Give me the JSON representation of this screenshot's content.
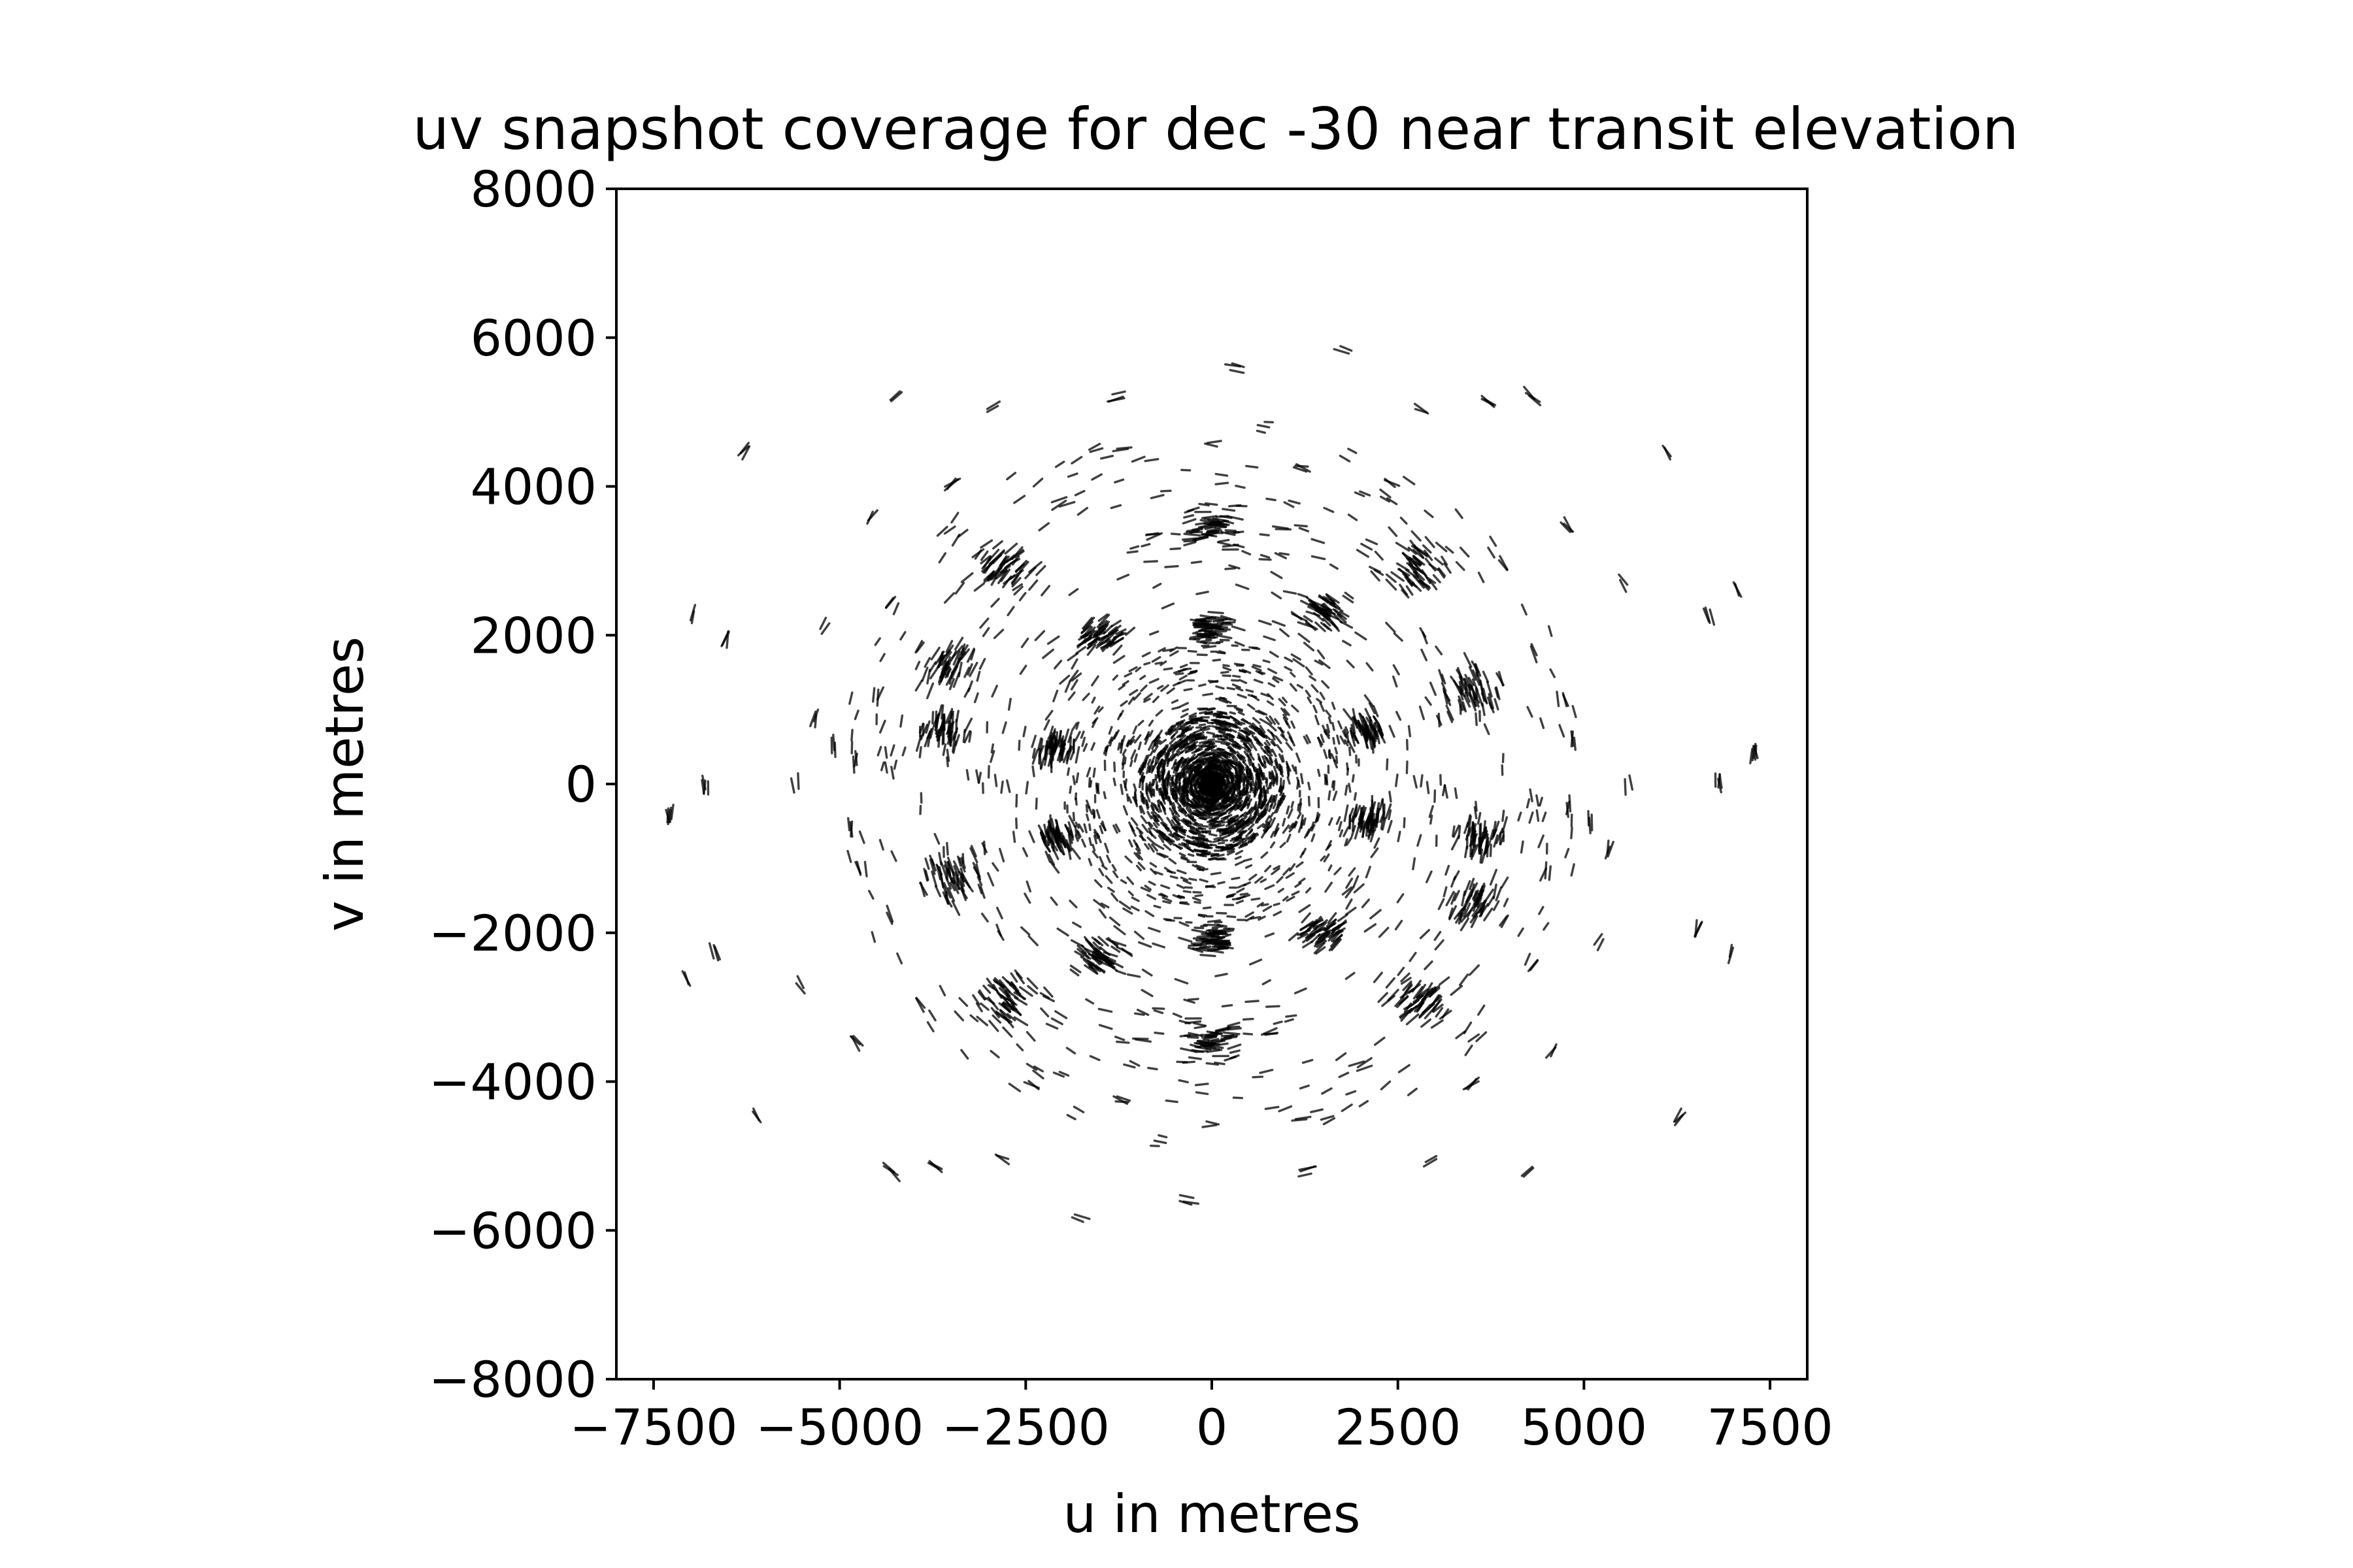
{
  "chart_data": {
    "type": "scatter",
    "title": "uv snapshot coverage for dec -30 near transit elevation",
    "xlabel": "u in metres",
    "ylabel": "v in metres",
    "xlim": [
      -8000,
      8000
    ],
    "ylim": [
      -8000,
      8000
    ],
    "x_ticks": [
      -7500,
      -5000,
      -2500,
      0,
      2500,
      5000,
      7500
    ],
    "x_tick_labels": [
      "−7500",
      "−5000",
      "−2500",
      "0",
      "2500",
      "5000",
      "7500"
    ],
    "y_ticks": [
      8000,
      6000,
      4000,
      2000,
      0,
      -2000,
      -4000,
      -6000,
      -8000
    ],
    "y_tick_labels": [
      "8000",
      "6000",
      "4000",
      "2000",
      "0",
      "−2000",
      "−4000",
      "−6000",
      "−8000"
    ],
    "grid": false,
    "marker_color": "#000000",
    "point_symmetry": "each point (u, v) is mirrored at (−u, −v)",
    "core": {
      "center": [
        0,
        0
      ],
      "radius_dense": 1000,
      "radius_halo": 2000
    },
    "clusters": [
      {
        "u": 0,
        "v": 3500,
        "spread": 300
      },
      {
        "u": -2800,
        "v": 2900,
        "spread": 320
      },
      {
        "u": 2800,
        "v": 2900,
        "spread": 320
      },
      {
        "u": -3500,
        "v": 1600,
        "spread": 320
      },
      {
        "u": 3500,
        "v": 1200,
        "spread": 380
      },
      {
        "u": -3600,
        "v": 700,
        "spread": 320
      },
      {
        "u": -1500,
        "v": 2000,
        "spread": 260
      },
      {
        "u": 1500,
        "v": 2300,
        "spread": 260
      },
      {
        "u": 0,
        "v": 2100,
        "spread": 260
      },
      {
        "u": -2100,
        "v": 500,
        "spread": 220
      },
      {
        "u": 2100,
        "v": 700,
        "spread": 220
      }
    ],
    "outer_arcs": [
      {
        "u": -6300,
        "v": 4500
      },
      {
        "u": -4200,
        "v": 5200
      },
      {
        "u": -2900,
        "v": 5100
      },
      {
        "u": -1300,
        "v": 5200
      },
      {
        "u": 300,
        "v": 5600
      },
      {
        "u": 1800,
        "v": 5800
      },
      {
        "u": 2800,
        "v": 5000
      },
      {
        "u": 3700,
        "v": 5100
      },
      {
        "u": 4300,
        "v": 5200
      },
      {
        "u": 6100,
        "v": 4500
      },
      {
        "u": -7000,
        "v": 2300
      },
      {
        "u": -6500,
        "v": 1900
      },
      {
        "u": -5200,
        "v": 2100
      },
      {
        "u": -4600,
        "v": 3600
      },
      {
        "u": 4800,
        "v": 3500
      },
      {
        "u": 5500,
        "v": 2700
      },
      {
        "u": 6700,
        "v": 2300
      },
      {
        "u": 7100,
        "v": 2600
      },
      {
        "u": -7300,
        "v": -400
      },
      {
        "u": -6800,
        "v": 0
      },
      {
        "u": -5600,
        "v": 0
      },
      {
        "u": -5300,
        "v": 900
      },
      {
        "u": -4800,
        "v": 300
      },
      {
        "u": 5100,
        "v": -500
      },
      {
        "u": 6800,
        "v": 0
      },
      {
        "u": 7300,
        "v": 400
      },
      {
        "u": 4900,
        "v": 600
      },
      {
        "u": -3500,
        "v": 4000
      },
      {
        "u": -2000,
        "v": 3800
      },
      {
        "u": -1200,
        "v": 4500
      },
      {
        "u": 1200,
        "v": 4200
      },
      {
        "u": 2400,
        "v": 4100
      },
      {
        "u": 3900,
        "v": 3000
      },
      {
        "u": -4300,
        "v": 2400
      },
      {
        "u": 4300,
        "v": 1800
      },
      {
        "u": -4500,
        "v": 1200
      },
      {
        "u": 4700,
        "v": 1100
      },
      {
        "u": 0,
        "v": 4550
      },
      {
        "u": -800,
        "v": 3300
      },
      {
        "u": 900,
        "v": 3400
      }
    ]
  }
}
